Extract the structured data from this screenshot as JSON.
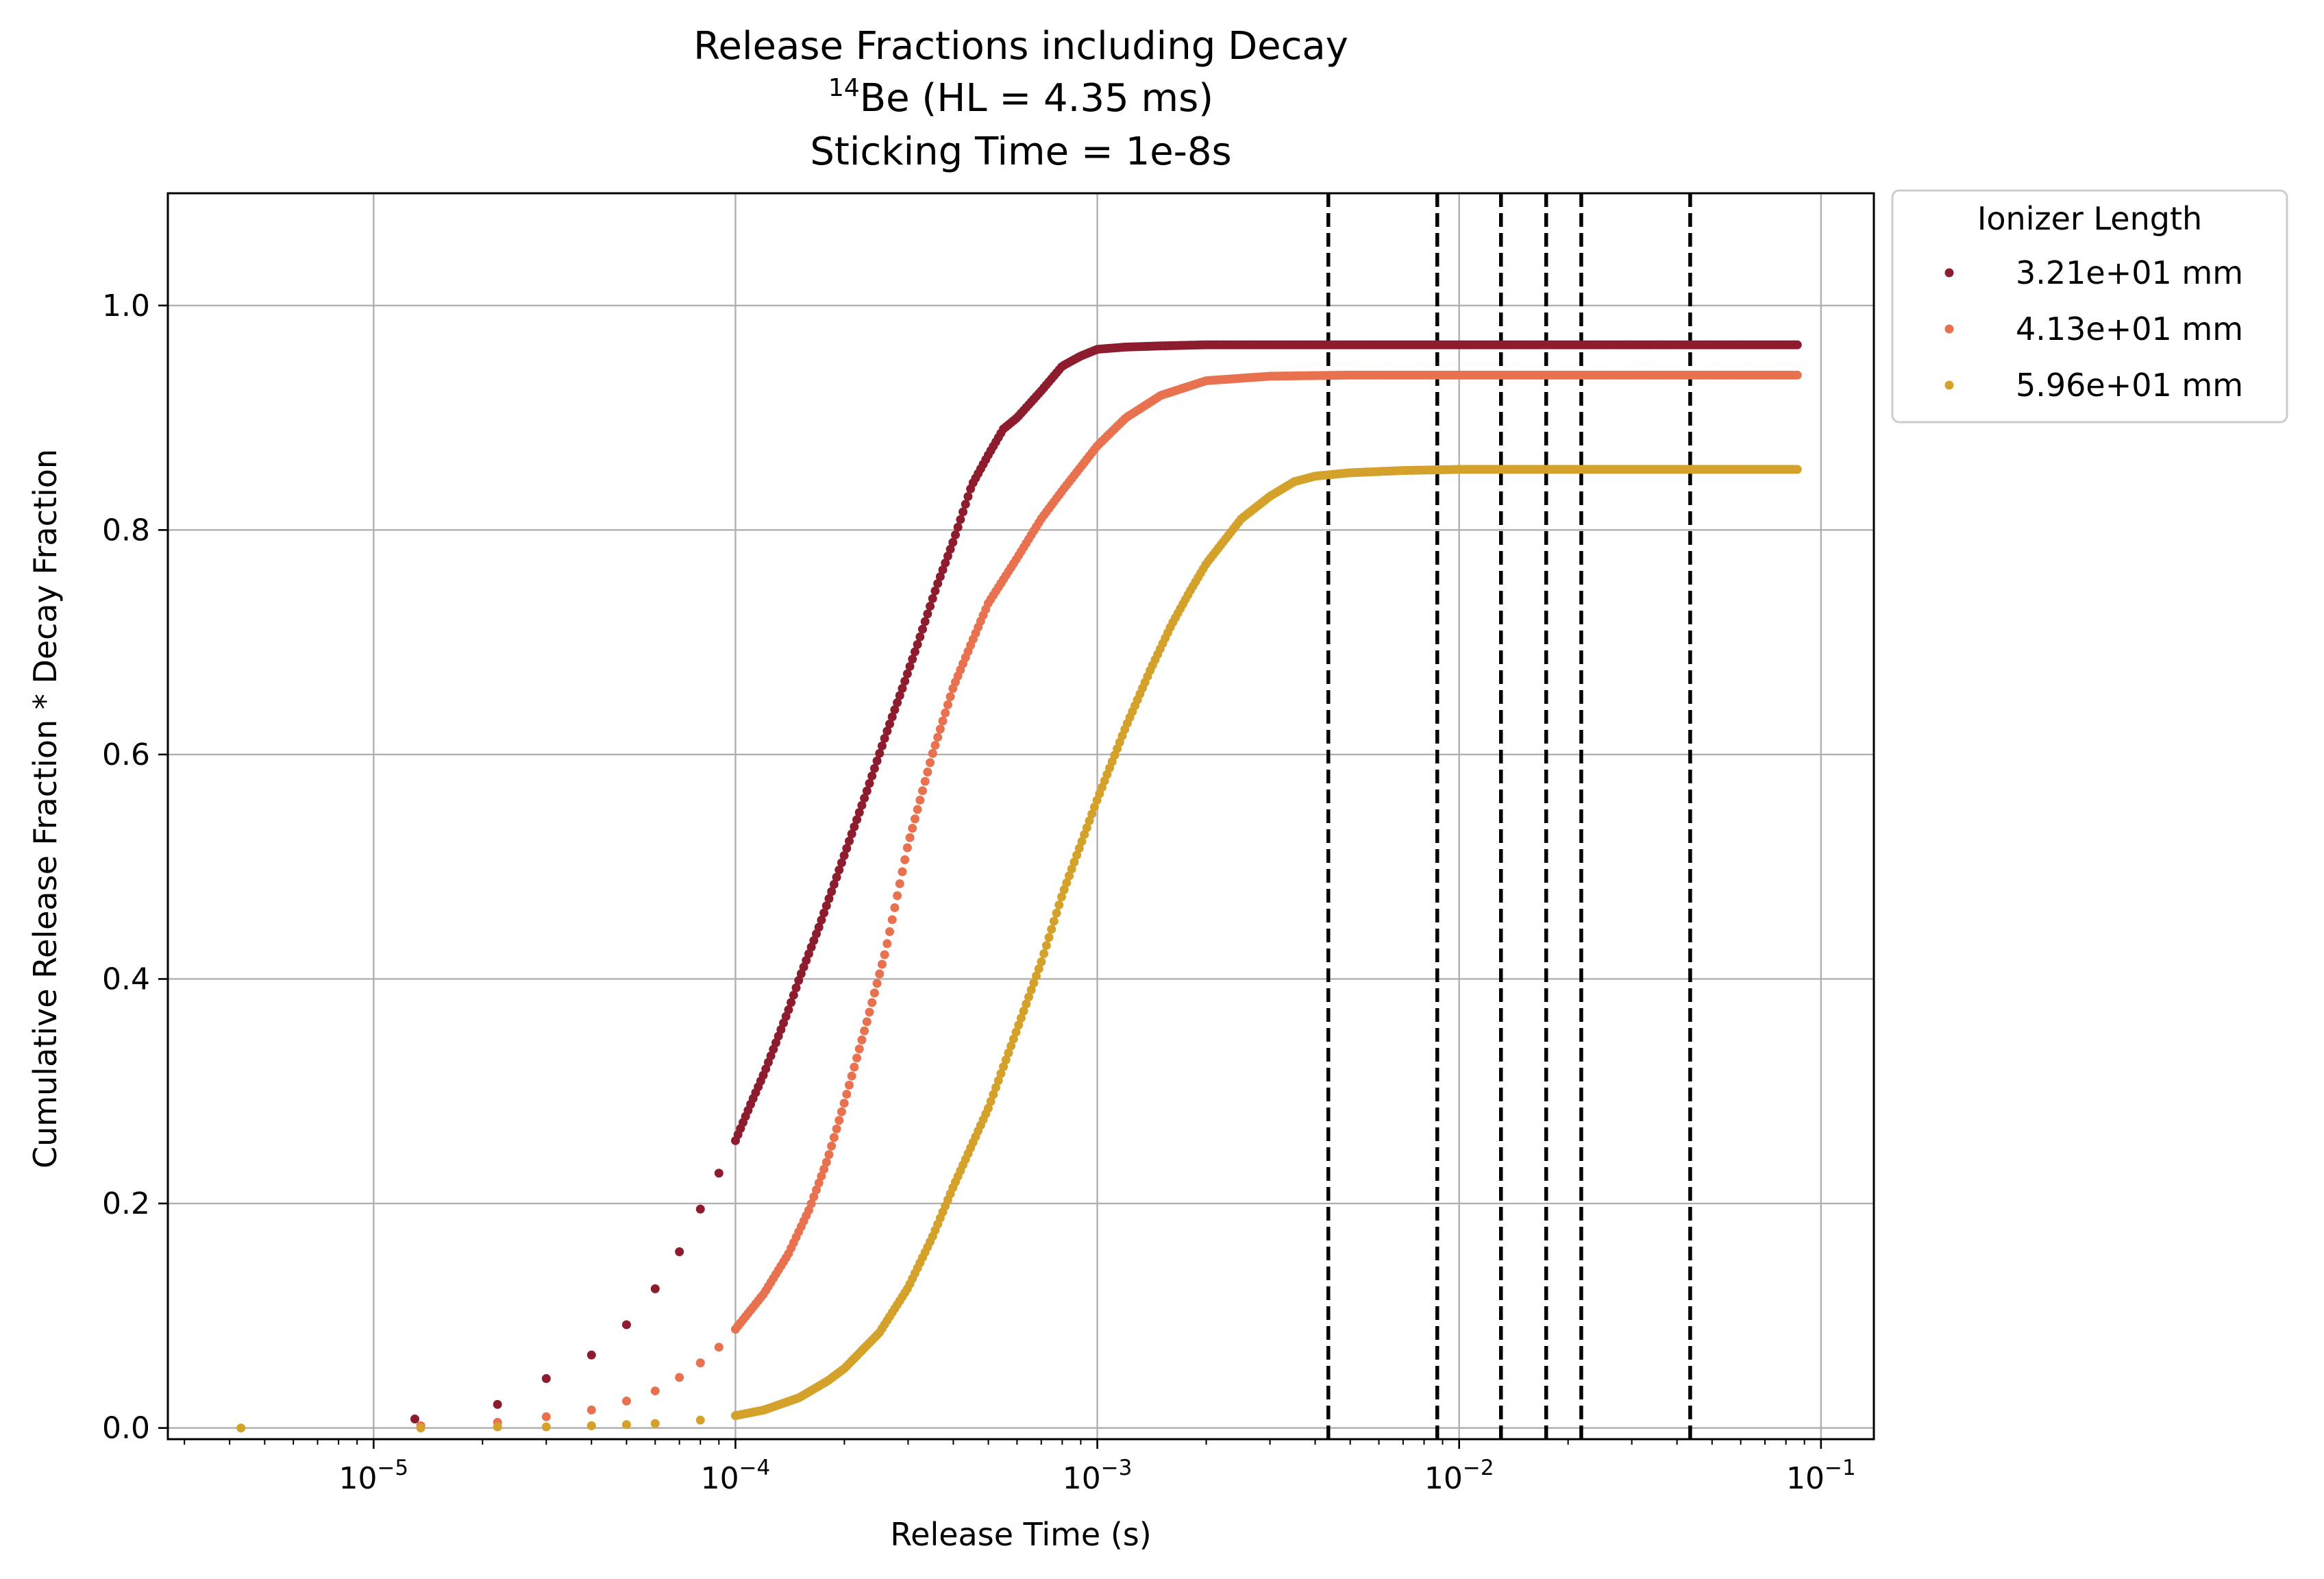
{
  "chart_data": {
    "type": "scatter",
    "title_lines": [
      "Release Fractions including Decay",
      "Sticking Time = 1e-8s"
    ],
    "subtitle": {
      "superscript": "14",
      "text": "Be (HL = 4.35 ms)"
    },
    "xlabel": "Release Time (s)",
    "ylabel": "Cumulative Release Fraction * Decay Fraction",
    "x_scale": "log",
    "xlim": [
      2.7e-06,
      0.14
    ],
    "ylim": [
      -0.01,
      1.1
    ],
    "grid": true,
    "x_ticks": [
      {
        "base": "10",
        "exp": "−5"
      },
      {
        "base": "10",
        "exp": "−4"
      },
      {
        "base": "10",
        "exp": "−3"
      },
      {
        "base": "10",
        "exp": "−2"
      },
      {
        "base": "10",
        "exp": "−1"
      }
    ],
    "y_ticks": [
      "0.0",
      "0.2",
      "0.4",
      "0.6",
      "0.8",
      "1.0"
    ],
    "vlines": [
      0.00435,
      0.0087,
      0.01305,
      0.0174,
      0.02175,
      0.0435
    ],
    "vline_style": "dashed",
    "legend": {
      "title": "Ionizer Length",
      "position": "outside-top-right"
    },
    "series": [
      {
        "name": "3.21e+01 mm",
        "color": "#8c1c2e",
        "plateau": 0.965,
        "points": [
          [
            1.3e-05,
            0.008
          ],
          [
            2.2e-05,
            0.021
          ],
          [
            3e-05,
            0.044
          ],
          [
            4e-05,
            0.065
          ],
          [
            5e-05,
            0.092
          ],
          [
            6e-05,
            0.124
          ],
          [
            7e-05,
            0.157
          ],
          [
            8e-05,
            0.195
          ],
          [
            9e-05,
            0.227
          ],
          [
            0.0001,
            0.256
          ],
          [
            0.00011,
            0.288
          ],
          [
            0.00012,
            0.316
          ],
          [
            0.00013,
            0.345
          ],
          [
            0.00014,
            0.372
          ],
          [
            0.00015,
            0.4
          ],
          [
            0.00017,
            0.446
          ],
          [
            0.00019,
            0.49
          ],
          [
            0.00021,
            0.53
          ],
          [
            0.00023,
            0.566
          ],
          [
            0.00026,
            0.617
          ],
          [
            0.00029,
            0.66
          ],
          [
            0.00032,
            0.7
          ],
          [
            0.00036,
            0.75
          ],
          [
            0.0004,
            0.79
          ],
          [
            0.00045,
            0.84
          ],
          [
            0.0005,
            0.867
          ],
          [
            0.00055,
            0.89
          ],
          [
            0.0006,
            0.9
          ],
          [
            0.0007,
            0.924
          ],
          [
            0.0008,
            0.946
          ],
          [
            0.0009,
            0.955
          ],
          [
            0.001,
            0.961
          ],
          [
            0.0012,
            0.963
          ],
          [
            0.0015,
            0.964
          ],
          [
            0.002,
            0.965
          ],
          [
            0.003,
            0.965
          ],
          [
            0.005,
            0.965
          ],
          [
            0.01,
            0.965
          ],
          [
            0.02,
            0.965
          ],
          [
            0.04,
            0.965
          ],
          [
            0.086,
            0.965
          ]
        ]
      },
      {
        "name": "4.13e+01 mm",
        "color": "#e8714f",
        "plateau": 0.938,
        "points": [
          [
            1.35e-05,
            0.002
          ],
          [
            2.2e-05,
            0.005
          ],
          [
            3e-05,
            0.01
          ],
          [
            4e-05,
            0.016
          ],
          [
            5e-05,
            0.024
          ],
          [
            6e-05,
            0.033
          ],
          [
            7e-05,
            0.045
          ],
          [
            8e-05,
            0.058
          ],
          [
            9e-05,
            0.072
          ],
          [
            0.0001,
            0.088
          ],
          [
            0.00012,
            0.12
          ],
          [
            0.00014,
            0.155
          ],
          [
            0.00016,
            0.195
          ],
          [
            0.00018,
            0.24
          ],
          [
            0.0002,
            0.29
          ],
          [
            0.00023,
            0.36
          ],
          [
            0.00026,
            0.425
          ],
          [
            0.0003,
            0.52
          ],
          [
            0.00035,
            0.6
          ],
          [
            0.0004,
            0.66
          ],
          [
            0.00045,
            0.7
          ],
          [
            0.0005,
            0.735
          ],
          [
            0.0006,
            0.775
          ],
          [
            0.0007,
            0.81
          ],
          [
            0.0008,
            0.835
          ],
          [
            0.001,
            0.875
          ],
          [
            0.0012,
            0.9
          ],
          [
            0.0015,
            0.92
          ],
          [
            0.002,
            0.933
          ],
          [
            0.003,
            0.937
          ],
          [
            0.005,
            0.938
          ],
          [
            0.01,
            0.938
          ],
          [
            0.02,
            0.938
          ],
          [
            0.04,
            0.938
          ],
          [
            0.086,
            0.938
          ]
        ]
      },
      {
        "name": "5.96e+01 mm",
        "color": "#d4a12a",
        "plateau": 0.854,
        "points": [
          [
            4.3e-06,
            0.0
          ],
          [
            1.35e-05,
            0.0
          ],
          [
            2.2e-05,
            0.001
          ],
          [
            3e-05,
            0.001
          ],
          [
            4e-05,
            0.002
          ],
          [
            5e-05,
            0.003
          ],
          [
            6e-05,
            0.004
          ],
          [
            8e-05,
            0.007
          ],
          [
            0.0001,
            0.011
          ],
          [
            0.00012,
            0.016
          ],
          [
            0.00015,
            0.027
          ],
          [
            0.00018,
            0.042
          ],
          [
            0.0002,
            0.053
          ],
          [
            0.00025,
            0.085
          ],
          [
            0.0003,
            0.125
          ],
          [
            0.00035,
            0.17
          ],
          [
            0.0004,
            0.215
          ],
          [
            0.0005,
            0.285
          ],
          [
            0.0006,
            0.355
          ],
          [
            0.0007,
            0.415
          ],
          [
            0.0008,
            0.475
          ],
          [
            0.0009,
            0.52
          ],
          [
            0.001,
            0.56
          ],
          [
            0.0012,
            0.625
          ],
          [
            0.0014,
            0.675
          ],
          [
            0.0016,
            0.715
          ],
          [
            0.0018,
            0.745
          ],
          [
            0.002,
            0.77
          ],
          [
            0.0025,
            0.81
          ],
          [
            0.003,
            0.83
          ],
          [
            0.0035,
            0.843
          ],
          [
            0.004,
            0.848
          ],
          [
            0.005,
            0.851
          ],
          [
            0.007,
            0.853
          ],
          [
            0.01,
            0.854
          ],
          [
            0.02,
            0.854
          ],
          [
            0.04,
            0.854
          ],
          [
            0.086,
            0.854
          ]
        ]
      }
    ]
  }
}
